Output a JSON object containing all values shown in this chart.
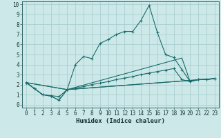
{
  "title": "",
  "xlabel": "Humidex (Indice chaleur)",
  "ylabel": "",
  "xlim": [
    -0.5,
    23.5
  ],
  "ylim": [
    -0.3,
    10.3
  ],
  "xticks": [
    0,
    1,
    2,
    3,
    4,
    5,
    6,
    7,
    8,
    9,
    10,
    11,
    12,
    13,
    14,
    15,
    16,
    17,
    18,
    19,
    20,
    21,
    22,
    23
  ],
  "yticks": [
    0,
    1,
    2,
    3,
    4,
    5,
    6,
    7,
    8,
    9,
    10
  ],
  "bg_color": "#cce8e8",
  "line_color": "#1a6b6b",
  "grid_color": "#aacfcf",
  "line1_x": [
    0,
    1,
    2,
    3,
    4,
    5,
    6,
    7,
    8,
    9,
    10,
    11,
    12,
    13,
    14,
    15,
    16,
    17,
    18,
    19,
    20,
    21,
    22,
    23
  ],
  "line1_y": [
    2.2,
    1.6,
    1.0,
    0.9,
    0.8,
    1.5,
    4.0,
    4.8,
    4.6,
    6.1,
    6.5,
    7.0,
    7.3,
    7.3,
    8.4,
    9.9,
    7.2,
    5.0,
    4.7,
    3.5,
    2.3,
    2.5,
    2.5,
    2.6
  ],
  "line2_x": [
    0,
    1,
    2,
    3,
    4,
    5,
    6,
    7,
    8,
    9,
    10,
    11,
    12,
    13,
    14,
    15,
    16,
    17,
    18,
    19,
    20,
    21,
    22,
    23
  ],
  "line2_y": [
    2.2,
    1.6,
    1.0,
    0.85,
    0.45,
    1.5,
    1.65,
    1.8,
    2.0,
    2.15,
    2.3,
    2.5,
    2.65,
    2.8,
    3.0,
    3.15,
    3.3,
    3.45,
    3.6,
    2.5,
    2.3,
    2.5,
    2.5,
    2.6
  ],
  "line3_x": [
    0,
    1,
    2,
    3,
    4,
    5,
    23
  ],
  "line3_y": [
    2.2,
    1.6,
    1.0,
    0.85,
    0.45,
    1.5,
    2.6
  ],
  "line4_x": [
    0,
    5,
    23
  ],
  "line4_y": [
    2.2,
    1.5,
    2.6
  ],
  "line5_x": [
    0,
    5,
    19,
    20,
    21,
    22,
    23
  ],
  "line5_y": [
    2.2,
    1.5,
    4.65,
    2.3,
    2.5,
    2.5,
    2.6
  ]
}
